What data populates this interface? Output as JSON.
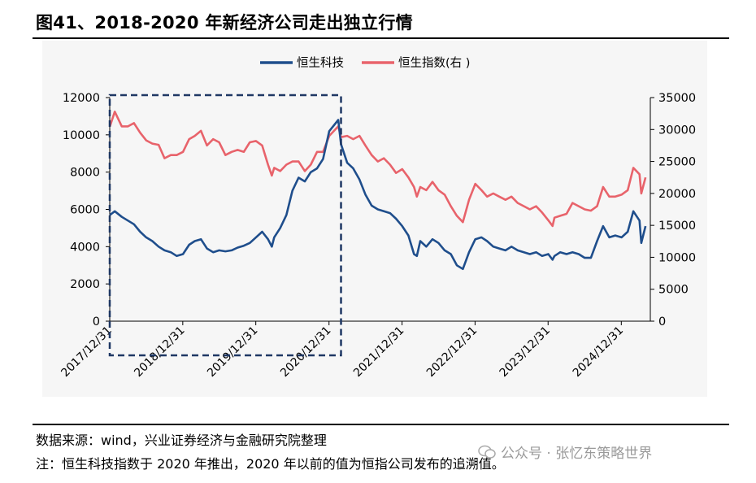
{
  "header": {
    "title": "图41、2018-2020 年新经济公司走出独立行情"
  },
  "footer": {
    "source": "数据来源：wind，兴业证券经济与金融研究院整理",
    "note": "注：恒生科技指数于 2020 年推出，2020 年以前的值为恒指公司发布的追溯值。",
    "watermark": "公众号 · 张忆东策略世界"
  },
  "colors": {
    "hstech": "#1f4e8c",
    "hsi": "#e8636b",
    "highlight_box": "#1f3864"
  },
  "chart_data": {
    "type": "line",
    "x_tick_labels": [
      "2017/12/31",
      "2018/12/31",
      "2019/12/31",
      "2020/12/31",
      "2021/12/31",
      "2022/12/31",
      "2023/12/31",
      "2024/12/31"
    ],
    "y_left": {
      "ticks": [
        0,
        2000,
        4000,
        6000,
        8000,
        10000,
        12000
      ],
      "ylim": [
        0,
        12000
      ]
    },
    "y_right": {
      "ticks": [
        0,
        5000,
        10000,
        15000,
        20000,
        25000,
        30000,
        35000
      ],
      "ylim": [
        0,
        35000
      ]
    },
    "legend_position": "top-center",
    "highlight": {
      "from": "2017/12/31",
      "to": "2021/03/01",
      "style": "dashed-box"
    },
    "series": [
      {
        "name": "恒生科技",
        "axis": "left",
        "x": [
          "2018-01-01",
          "2018-01-25",
          "2018-03-01",
          "2018-04-01",
          "2018-05-01",
          "2018-06-01",
          "2018-07-01",
          "2018-08-01",
          "2018-09-01",
          "2018-10-01",
          "2018-11-01",
          "2018-12-01",
          "2019-01-01",
          "2019-02-01",
          "2019-03-01",
          "2019-04-01",
          "2019-05-01",
          "2019-06-01",
          "2019-07-01",
          "2019-08-01",
          "2019-09-01",
          "2019-10-01",
          "2019-11-01",
          "2019-12-01",
          "2020-01-01",
          "2020-02-01",
          "2020-03-01",
          "2020-03-20",
          "2020-04-01",
          "2020-05-01",
          "2020-06-01",
          "2020-07-01",
          "2020-08-01",
          "2020-09-01",
          "2020-10-01",
          "2020-11-01",
          "2020-12-01",
          "2021-01-01",
          "2021-02-15",
          "2021-03-01",
          "2021-04-01",
          "2021-05-01",
          "2021-06-01",
          "2021-07-01",
          "2021-08-01",
          "2021-09-01",
          "2021-10-01",
          "2021-11-01",
          "2021-12-01",
          "2022-01-01",
          "2022-02-01",
          "2022-03-01",
          "2022-03-15",
          "2022-04-01",
          "2022-05-01",
          "2022-06-01",
          "2022-07-01",
          "2022-08-01",
          "2022-09-01",
          "2022-10-01",
          "2022-10-31",
          "2022-12-01",
          "2023-01-01",
          "2023-02-01",
          "2023-03-01",
          "2023-04-01",
          "2023-05-01",
          "2023-06-01",
          "2023-07-01",
          "2023-08-01",
          "2023-09-01",
          "2023-10-01",
          "2023-11-01",
          "2023-12-01",
          "2024-01-01",
          "2024-01-22",
          "2024-02-01",
          "2024-03-01",
          "2024-04-01",
          "2024-05-01",
          "2024-06-01",
          "2024-07-01",
          "2024-08-01",
          "2024-09-01",
          "2024-10-01",
          "2024-11-01",
          "2024-12-01",
          "2025-01-01",
          "2025-02-01",
          "2025-03-01",
          "2025-04-01",
          "2025-04-10",
          "2025-05-01"
        ],
        "values": [
          5700,
          5900,
          5600,
          5400,
          5200,
          4800,
          4500,
          4300,
          4000,
          3800,
          3700,
          3500,
          3600,
          4100,
          4300,
          4400,
          3900,
          3700,
          3800,
          3750,
          3800,
          3950,
          4050,
          4200,
          4500,
          4800,
          4400,
          4000,
          4500,
          5000,
          5700,
          7000,
          7700,
          7500,
          8000,
          8200,
          8700,
          10200,
          10800,
          9500,
          8500,
          8200,
          7600,
          6800,
          6200,
          6000,
          5900,
          5800,
          5500,
          5100,
          4600,
          3600,
          3500,
          4300,
          4000,
          4400,
          4200,
          3800,
          3600,
          3000,
          2800,
          3700,
          4400,
          4500,
          4300,
          4000,
          3900,
          3800,
          4000,
          3800,
          3700,
          3600,
          3700,
          3500,
          3600,
          3300,
          3500,
          3700,
          3600,
          3700,
          3600,
          3400,
          3400,
          4300,
          5100,
          4500,
          4600,
          4500,
          4800,
          5900,
          5400,
          4200,
          5100
        ]
      },
      {
        "name": "恒生指数(右 )",
        "axis": "right",
        "x": [
          "2018-01-01",
          "2018-01-25",
          "2018-03-01",
          "2018-04-01",
          "2018-05-01",
          "2018-06-01",
          "2018-07-01",
          "2018-08-01",
          "2018-09-01",
          "2018-10-01",
          "2018-11-01",
          "2018-12-01",
          "2019-01-01",
          "2019-02-01",
          "2019-03-01",
          "2019-04-01",
          "2019-05-01",
          "2019-06-01",
          "2019-07-01",
          "2019-08-01",
          "2019-09-01",
          "2019-10-01",
          "2019-11-01",
          "2019-12-01",
          "2020-01-01",
          "2020-02-01",
          "2020-03-01",
          "2020-03-20",
          "2020-04-01",
          "2020-05-01",
          "2020-06-01",
          "2020-07-01",
          "2020-08-01",
          "2020-09-01",
          "2020-10-01",
          "2020-11-01",
          "2020-12-01",
          "2021-01-01",
          "2021-02-15",
          "2021-03-01",
          "2021-04-01",
          "2021-05-01",
          "2021-06-01",
          "2021-07-01",
          "2021-08-01",
          "2021-09-01",
          "2021-10-01",
          "2021-11-01",
          "2021-12-01",
          "2022-01-01",
          "2022-02-01",
          "2022-03-01",
          "2022-03-15",
          "2022-04-01",
          "2022-05-01",
          "2022-06-01",
          "2022-07-01",
          "2022-08-01",
          "2022-09-01",
          "2022-10-01",
          "2022-10-31",
          "2022-12-01",
          "2023-01-01",
          "2023-02-01",
          "2023-03-01",
          "2023-04-01",
          "2023-05-01",
          "2023-06-01",
          "2023-07-01",
          "2023-08-01",
          "2023-09-01",
          "2023-10-01",
          "2023-11-01",
          "2023-12-01",
          "2024-01-01",
          "2024-01-22",
          "2024-02-01",
          "2024-03-01",
          "2024-04-01",
          "2024-05-01",
          "2024-06-01",
          "2024-07-01",
          "2024-08-01",
          "2024-09-01",
          "2024-10-01",
          "2024-11-01",
          "2024-12-01",
          "2025-01-01",
          "2025-02-01",
          "2025-03-01",
          "2025-04-01",
          "2025-04-10",
          "2025-05-01"
        ],
        "values": [
          30500,
          32800,
          30500,
          30500,
          31000,
          29500,
          28300,
          27800,
          27600,
          25500,
          26000,
          26000,
          26500,
          28500,
          29000,
          29800,
          27500,
          28500,
          28000,
          26000,
          26500,
          26800,
          26500,
          28000,
          28200,
          27500,
          24500,
          22800,
          24000,
          23500,
          24500,
          25000,
          25000,
          23500,
          24500,
          26500,
          26500,
          29000,
          30500,
          28800,
          29000,
          28500,
          29000,
          27500,
          26000,
          25000,
          25500,
          24500,
          23200,
          23800,
          22500,
          21000,
          19500,
          21000,
          20500,
          21800,
          20500,
          19800,
          18000,
          16500,
          15500,
          19000,
          21500,
          20500,
          19500,
          20000,
          19500,
          19000,
          19500,
          18500,
          18000,
          17500,
          18000,
          17000,
          15800,
          14900,
          16200,
          16500,
          16800,
          18500,
          18000,
          17500,
          17300,
          18000,
          21000,
          19500,
          19500,
          19800,
          20500,
          24000,
          23000,
          20000,
          22500
        ]
      }
    ]
  }
}
